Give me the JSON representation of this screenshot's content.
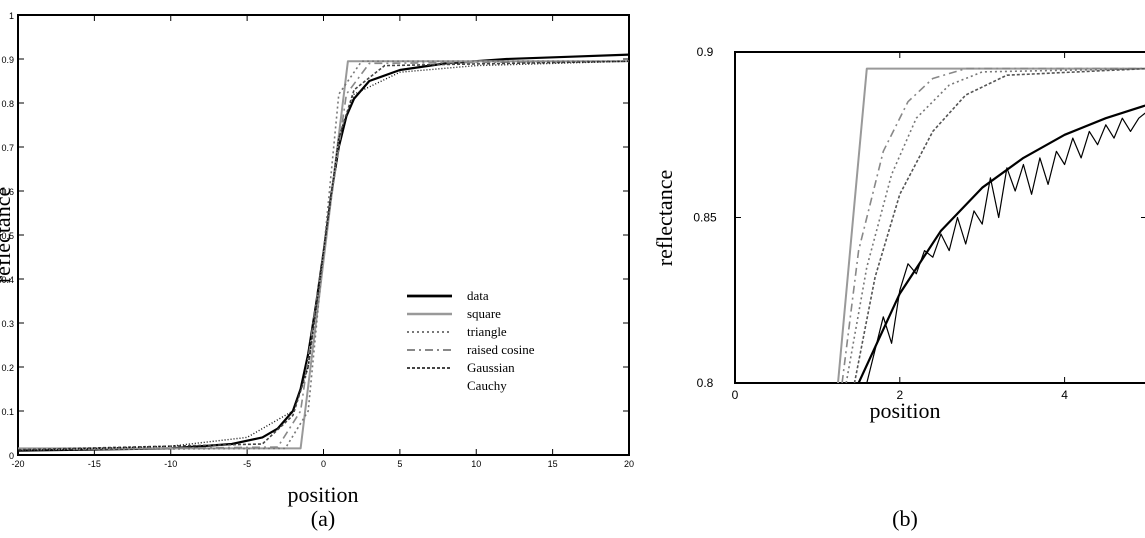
{
  "chart_data": [
    {
      "type": "line",
      "caption": "(a)",
      "xlabel": "position",
      "ylabel": "reflectance",
      "xlim": [
        -20,
        20
      ],
      "ylim": [
        0,
        1
      ],
      "xticks": [
        "-20",
        "-15",
        "-10",
        "-5",
        "0",
        "5",
        "10",
        "15",
        "20"
      ],
      "yticks": [
        "0",
        "0.1",
        "0.2",
        "0.3",
        "0.4",
        "0.5",
        "0.6",
        "0.7",
        "0.8",
        "0.9",
        "1"
      ],
      "legend_position": "lower-right",
      "series": [
        {
          "name": "data",
          "color": "#000000",
          "x": [
            -20,
            -10,
            -6,
            -4,
            -3,
            -2,
            -1.5,
            -1,
            -0.5,
            0,
            0.5,
            1,
            1.5,
            2,
            3,
            5,
            8,
            12,
            16,
            20
          ],
          "y": [
            0.01,
            0.015,
            0.025,
            0.04,
            0.06,
            0.1,
            0.15,
            0.23,
            0.34,
            0.46,
            0.59,
            0.7,
            0.77,
            0.81,
            0.85,
            0.875,
            0.89,
            0.9,
            0.905,
            0.91
          ]
        },
        {
          "name": "square",
          "color": "#999999",
          "x": [
            -20,
            -1.5,
            1.6,
            20
          ],
          "y": [
            0.015,
            0.015,
            0.895,
            0.895
          ]
        },
        {
          "name": "triangle",
          "color": "#777777",
          "x": [
            -20,
            -2.5,
            -1,
            0,
            1,
            2.5,
            20
          ],
          "y": [
            0.012,
            0.015,
            0.1,
            0.46,
            0.82,
            0.895,
            0.895
          ]
        },
        {
          "name": "raised cosine",
          "color": "#888888",
          "x": [
            -20,
            -3,
            -1.5,
            0,
            1.5,
            3,
            20
          ],
          "y": [
            0.012,
            0.018,
            0.1,
            0.46,
            0.82,
            0.89,
            0.895
          ]
        },
        {
          "name": "Gaussian",
          "color": "#444444",
          "x": [
            -20,
            -4,
            -2,
            -1,
            0,
            1,
            2,
            4,
            20
          ],
          "y": [
            0.012,
            0.025,
            0.09,
            0.2,
            0.46,
            0.72,
            0.83,
            0.885,
            0.895
          ]
        },
        {
          "name": "Cauchy",
          "color": "#111111",
          "x": [
            -20,
            -10,
            -5,
            -2,
            -1,
            0,
            1,
            2,
            5,
            10,
            20
          ],
          "y": [
            0.01,
            0.02,
            0.04,
            0.1,
            0.2,
            0.46,
            0.72,
            0.82,
            0.87,
            0.885,
            0.895
          ]
        }
      ],
      "legend": [
        "data",
        "square",
        "triangle",
        "raised cosine",
        "Gaussian",
        "Cauchy"
      ]
    },
    {
      "type": "line",
      "caption": "(b)",
      "xlabel": "position",
      "ylabel": "reflectance",
      "xlim": [
        0,
        5
      ],
      "ylim": [
        0.8,
        0.9
      ],
      "xticks": [
        "0",
        "2",
        "4"
      ],
      "yticks": [
        "0.8",
        "0.85",
        "0.9"
      ],
      "series": [
        {
          "name": "square",
          "color": "#999999",
          "x": [
            1.25,
            1.6,
            5
          ],
          "y": [
            0.8,
            0.895,
            0.895
          ]
        },
        {
          "name": "raised cosine",
          "color": "#888888",
          "x": [
            1.3,
            1.5,
            1.8,
            2.1,
            2.4,
            2.8,
            5
          ],
          "y": [
            0.8,
            0.84,
            0.87,
            0.885,
            0.892,
            0.895,
            0.895
          ]
        },
        {
          "name": "triangle",
          "color": "#777777",
          "x": [
            1.35,
            1.6,
            1.9,
            2.2,
            2.6,
            3,
            5
          ],
          "y": [
            0.8,
            0.835,
            0.863,
            0.88,
            0.89,
            0.894,
            0.895
          ]
        },
        {
          "name": "Gaussian",
          "color": "#555555",
          "x": [
            1.45,
            1.7,
            2,
            2.4,
            2.8,
            3.3,
            5
          ],
          "y": [
            0.8,
            0.832,
            0.857,
            0.876,
            0.887,
            0.893,
            0.895
          ]
        },
        {
          "name": "Cauchy",
          "color": "#000000",
          "x": [
            1.5,
            2,
            2.5,
            3,
            3.5,
            4,
            4.5,
            5
          ],
          "y": [
            0.8,
            0.827,
            0.846,
            0.859,
            0.868,
            0.875,
            0.88,
            0.884
          ]
        },
        {
          "name": "data",
          "color": "#000000",
          "x": [
            1.6,
            1.8,
            1.9,
            2.0,
            2.1,
            2.2,
            2.3,
            2.4,
            2.5,
            2.6,
            2.7,
            2.8,
            2.9,
            3.0,
            3.1,
            3.2,
            3.3,
            3.4,
            3.5,
            3.6,
            3.7,
            3.8,
            3.9,
            4.0,
            4.1,
            4.2,
            4.3,
            4.4,
            4.5,
            4.6,
            4.7,
            4.8,
            4.9,
            5.0
          ],
          "y": [
            0.8,
            0.82,
            0.812,
            0.828,
            0.836,
            0.833,
            0.84,
            0.838,
            0.845,
            0.84,
            0.85,
            0.842,
            0.852,
            0.848,
            0.862,
            0.85,
            0.865,
            0.858,
            0.866,
            0.857,
            0.868,
            0.86,
            0.87,
            0.866,
            0.874,
            0.868,
            0.876,
            0.872,
            0.878,
            0.874,
            0.88,
            0.876,
            0.88,
            0.882
          ]
        }
      ]
    }
  ]
}
